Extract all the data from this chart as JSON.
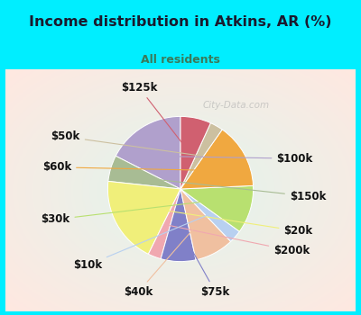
{
  "title": "Income distribution in Atkins, AR (%)",
  "subtitle": "All residents",
  "title_color": "#1a1a2e",
  "subtitle_color": "#3a7a5a",
  "bg_cyan": "#00eeff",
  "bg_inner": "#d8f0e8",
  "watermark": "City-Data.com",
  "slices": [
    {
      "label": "$100k",
      "value": 18,
      "color": "#b0a0cc"
    },
    {
      "label": "$150k",
      "value": 6,
      "color": "#a8bc94"
    },
    {
      "label": "$20k",
      "value": 20,
      "color": "#f0ef7a"
    },
    {
      "label": "$200k",
      "value": 3,
      "color": "#f0a8b0"
    },
    {
      "label": "$75k",
      "value": 8,
      "color": "#8080c8"
    },
    {
      "label": "$40k",
      "value": 9,
      "color": "#f0c0a0"
    },
    {
      "label": "$10k",
      "value": 3,
      "color": "#b8d0f0"
    },
    {
      "label": "$30k",
      "value": 11,
      "color": "#b8e070"
    },
    {
      "label": "$60k",
      "value": 15,
      "color": "#f0a840"
    },
    {
      "label": "$50k",
      "value": 3,
      "color": "#ccc0a0"
    },
    {
      "label": "$125k",
      "value": 7,
      "color": "#d06070"
    }
  ],
  "start_angle": 90,
  "label_font_size": 8.5
}
